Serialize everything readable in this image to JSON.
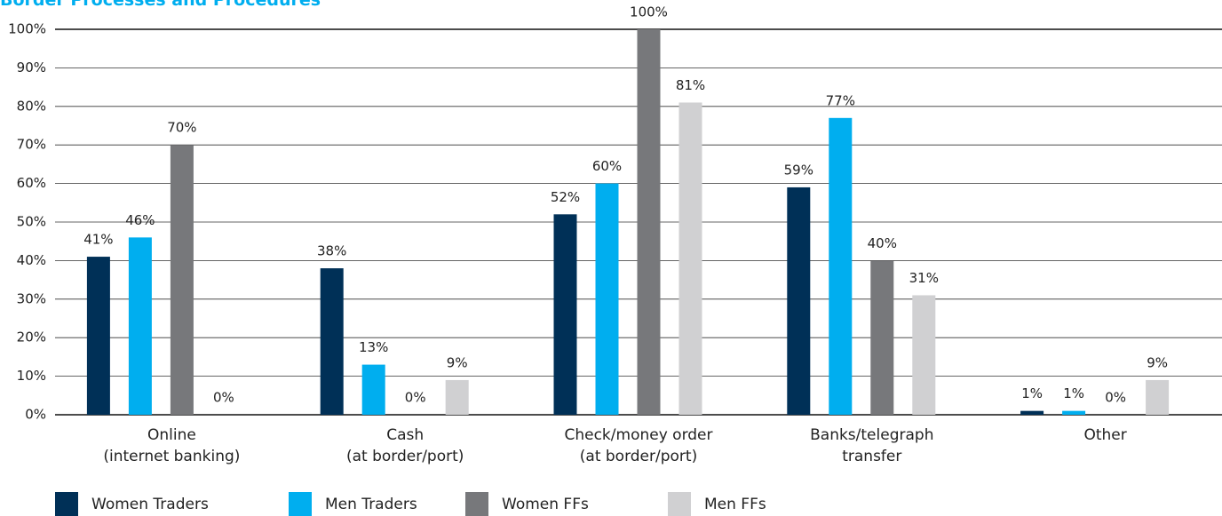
{
  "chart_data": {
    "type": "bar",
    "title": "Border Processes and Procedures",
    "categories": [
      "Online\n(internet banking)",
      "Cash\n(at border/port)",
      "Check/money order\n(at border/port)",
      "Banks/telegraph\ntransfer",
      "Other"
    ],
    "series": [
      {
        "name": "Women Traders",
        "color": "#003057",
        "values": [
          41,
          38,
          52,
          59,
          1
        ],
        "value_labels": [
          "41%",
          "38%",
          "52%",
          "59%",
          "1%"
        ]
      },
      {
        "name": "Men Traders",
        "color": "#00aeef",
        "values": [
          46,
          13,
          60,
          77,
          1
        ],
        "value_labels": [
          "46%",
          "13%",
          "60%",
          "77%",
          "1%"
        ]
      },
      {
        "name": "Women FFs",
        "color": "#77787b",
        "values": [
          70,
          0,
          100,
          40,
          0
        ],
        "value_labels": [
          "70%",
          "0%",
          "100%",
          "40%",
          "0%"
        ]
      },
      {
        "name": "Men FFs",
        "color": "#d0d0d2",
        "values": [
          0,
          9,
          81,
          31,
          9
        ],
        "value_labels": [
          "0%",
          "9%",
          "81%",
          "31%",
          "9%"
        ]
      }
    ],
    "ylim": [
      0,
      100
    ],
    "yticks": [
      {
        "value": 0,
        "label": "0%"
      },
      {
        "value": 10,
        "label": "10%"
      },
      {
        "value": 20,
        "label": "20%"
      },
      {
        "value": 30,
        "label": "30%"
      },
      {
        "value": 40,
        "label": "40%"
      },
      {
        "value": 50,
        "label": "50%"
      },
      {
        "value": 60,
        "label": "60%"
      },
      {
        "value": 70,
        "label": "70%"
      },
      {
        "value": 80,
        "label": "80%"
      },
      {
        "value": 90,
        "label": "90%"
      },
      {
        "value": 100,
        "label": "100%"
      }
    ],
    "grid": true,
    "legend": "bottom"
  }
}
